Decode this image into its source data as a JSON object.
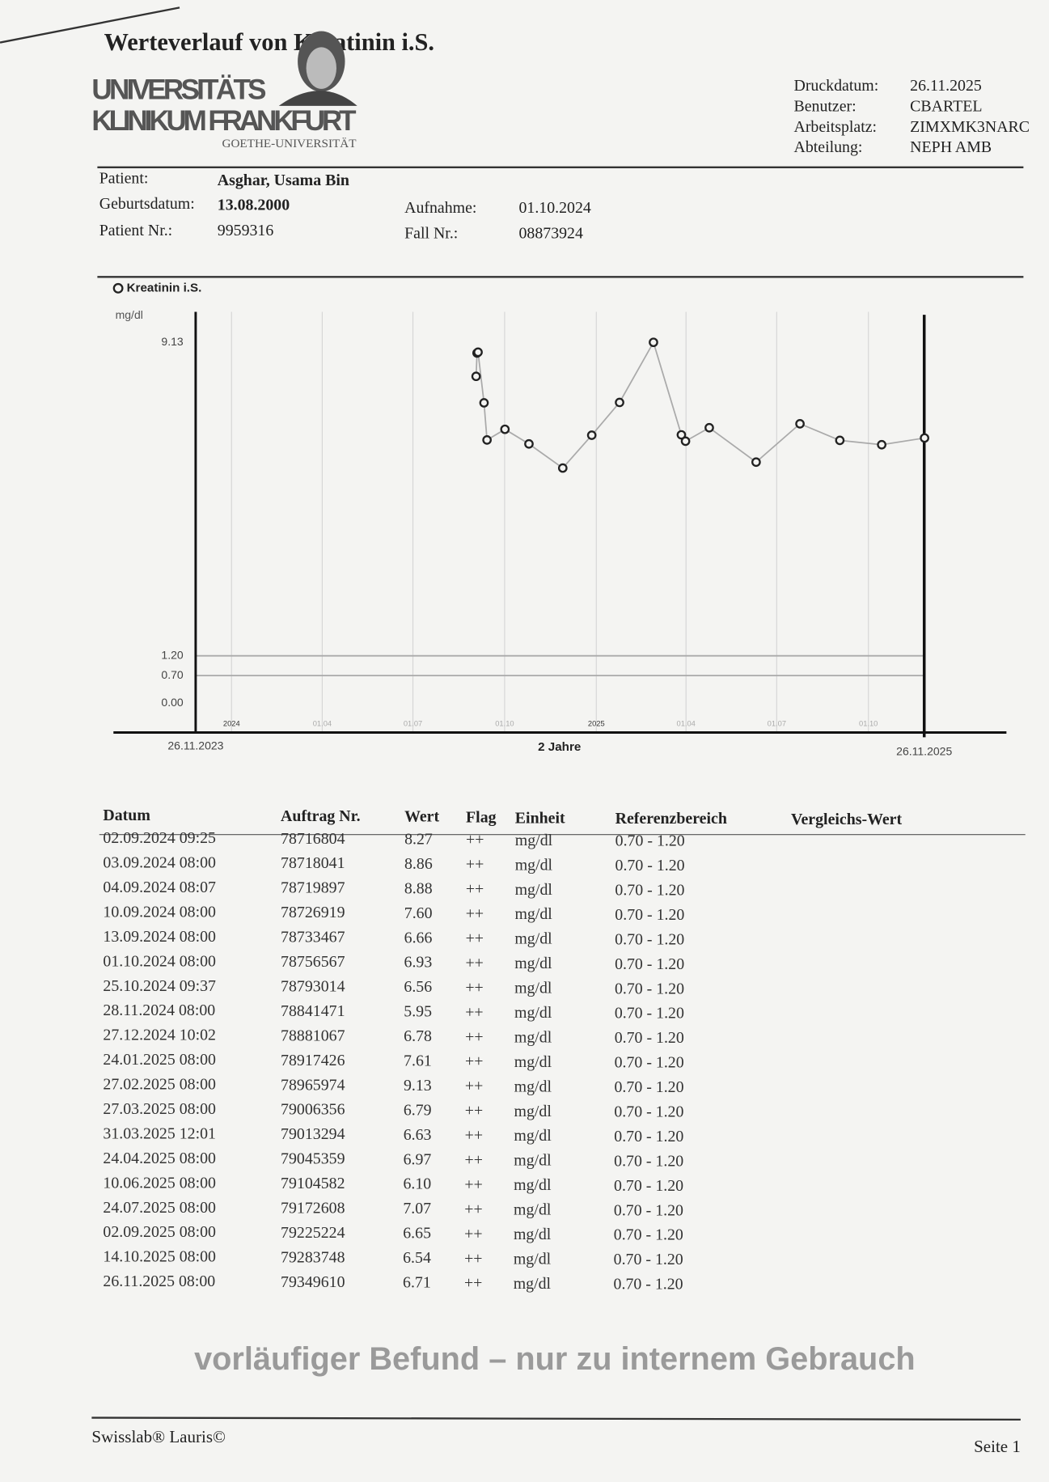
{
  "header": {
    "title": "Werteverlauf von Kreatinin i.S.",
    "logo": [
      "UNIVERSITÄTS",
      "KLINIKUM FRANKFURT",
      "GOETHE-UNIVERSITÄT"
    ],
    "meta": [
      [
        "Druckdatum:",
        "26.11.2025"
      ],
      [
        "Benutzer:",
        "CBARTEL"
      ],
      [
        "Arbeitsplatz:",
        "ZIMXMK3NARC"
      ],
      [
        "Abteilung:",
        "NEPH AMB"
      ]
    ]
  },
  "patient": [
    [
      "Patient:",
      "Asghar, Usama Bin"
    ],
    [
      "Geburtsdatum:",
      "13.08.2000"
    ],
    [
      "Patient Nr.:",
      "9959316"
    ],
    [
      "Aufnahme:",
      "01.10.2024"
    ],
    [
      "Fall Nr.:",
      "08873924"
    ]
  ],
  "chart_data": {
    "type": "line",
    "y_label": "mg/dl",
    "x_label": "2 Jahre",
    "xlim": [
      "26.11.2023",
      "26.11.2025"
    ],
    "xticks": [
      {
        "value": "01.01.2024",
        "label": "2024"
      },
      {
        "value": "01.04.2024",
        "label": "01.04"
      },
      {
        "value": "01.07.2024",
        "label": "01.07"
      },
      {
        "value": "01.10.2024",
        "label": "01.10"
      },
      {
        "value": "01.01.2025",
        "label": "2025"
      },
      {
        "value": "01.04.2025",
        "label": "01.04"
      },
      {
        "value": "01.07.2025",
        "label": "01.07"
      },
      {
        "value": "01.10.2025",
        "label": "01.10"
      }
    ],
    "ylim": [
      -0.74,
      9.9
    ],
    "yticks": [
      {
        "value": 0,
        "label": "0.00"
      },
      {
        "value": 0.7,
        "label": "0.70"
      },
      {
        "value": 1.2,
        "label": "1.20"
      },
      {
        "value": 9.13,
        "label": "9.13"
      }
    ],
    "grid": true,
    "series": [
      {
        "name": "Kreatinin i.S.",
        "color": "#222222"
      }
    ]
  },
  "table": {
    "columns": [
      "Datum",
      "Auftrag Nr.",
      "Wert",
      "Flag",
      "Einheit",
      "Referenzbereich",
      "Vergleichs-Wert"
    ],
    "rows": [
      [
        "02.09.2024 09:25",
        "78716804",
        "8.27",
        "++",
        "mg/dl",
        "0.70 - 1.20"
      ],
      [
        "03.09.2024 08:00",
        "78718041",
        "8.86",
        "++",
        "mg/dl",
        "0.70 - 1.20"
      ],
      [
        "04.09.2024 08:07",
        "78719897",
        "8.88",
        "++",
        "mg/dl",
        "0.70 - 1.20"
      ],
      [
        "10.09.2024 08:00",
        "78726919",
        "7.60",
        "++",
        "mg/dl",
        "0.70 - 1.20"
      ],
      [
        "13.09.2024 08:00",
        "78733467",
        "6.66",
        "++",
        "mg/dl",
        "0.70 - 1.20"
      ],
      [
        "01.10.2024 08:00",
        "78756567",
        "6.93",
        "++",
        "mg/dl",
        "0.70 - 1.20"
      ],
      [
        "25.10.2024 09:37",
        "78793014",
        "6.56",
        "++",
        "mg/dl",
        "0.70 - 1.20"
      ],
      [
        "28.11.2024 08:00",
        "78841471",
        "5.95",
        "++",
        "mg/dl",
        "0.70 - 1.20"
      ],
      [
        "27.12.2024 10:02",
        "78881067",
        "6.78",
        "++",
        "mg/dl",
        "0.70 - 1.20"
      ],
      [
        "24.01.2025 08:00",
        "78917426",
        "7.61",
        "++",
        "mg/dl",
        "0.70 - 1.20"
      ],
      [
        "27.02.2025 08:00",
        "78965974",
        "9.13",
        "++",
        "mg/dl",
        "0.70 - 1.20"
      ],
      [
        "27.03.2025 08:00",
        "79006356",
        "6.79",
        "++",
        "mg/dl",
        "0.70 - 1.20"
      ],
      [
        "31.03.2025 12:01",
        "79013294",
        "6.63",
        "++",
        "mg/dl",
        "0.70 - 1.20"
      ],
      [
        "24.04.2025 08:00",
        "79045359",
        "6.97",
        "++",
        "mg/dl",
        "0.70 - 1.20"
      ],
      [
        "10.06.2025 08:00",
        "79104582",
        "6.10",
        "++",
        "mg/dl",
        "0.70 - 1.20"
      ],
      [
        "24.07.2025 08:00",
        "79172608",
        "7.07",
        "++",
        "mg/dl",
        "0.70 - 1.20"
      ],
      [
        "02.09.2025 08:00",
        "79225224",
        "6.65",
        "++",
        "mg/dl",
        "0.70 - 1.20"
      ],
      [
        "14.10.2025 08:00",
        "79283748",
        "6.54",
        "++",
        "mg/dl",
        "0.70 - 1.20"
      ],
      [
        "26.11.2025 08:00",
        "79349610",
        "6.71",
        "++",
        "mg/dl",
        "0.70 - 1.20"
      ]
    ]
  },
  "footer": {
    "watermark": "vorläufiger Befund – nur zu internem Gebrauch",
    "software": "Swisslab® Lauris©",
    "page": "Seite 1"
  }
}
